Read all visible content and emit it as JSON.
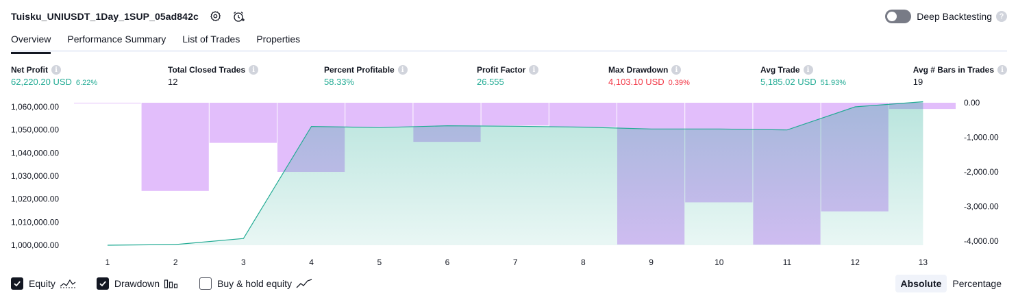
{
  "header": {
    "title": "Tuisku_UNIUSDT_1Day_1SUP_05ad842c",
    "deep_backtesting_label": "Deep Backtesting",
    "help_glyph": "?"
  },
  "tabs": [
    {
      "label": "Overview",
      "active": true
    },
    {
      "label": "Performance Summary",
      "active": false
    },
    {
      "label": "List of Trades",
      "active": false
    },
    {
      "label": "Properties",
      "active": false
    }
  ],
  "info_glyph": "i",
  "metrics": [
    {
      "label": "Net Profit",
      "value": "62,220.20 USD",
      "pct": "6.22%",
      "tone": "pos"
    },
    {
      "label": "Total Closed Trades",
      "value": "12",
      "pct": "",
      "tone": "neutral"
    },
    {
      "label": "Percent Profitable",
      "value": "58.33%",
      "pct": "",
      "tone": "pos"
    },
    {
      "label": "Profit Factor",
      "value": "26.555",
      "pct": "",
      "tone": "pos"
    },
    {
      "label": "Max Drawdown",
      "value": "4,103.10 USD",
      "pct": "0.39%",
      "tone": "neg"
    },
    {
      "label": "Avg Trade",
      "value": "5,185.02 USD",
      "pct": "51.93%",
      "tone": "pos"
    },
    {
      "label": "Avg # Bars in Trades",
      "value": "19",
      "pct": "",
      "tone": "neutral"
    }
  ],
  "chart_data": {
    "type": "line",
    "x": [
      1,
      2,
      3,
      4,
      5,
      6,
      7,
      8,
      9,
      10,
      11,
      12,
      13
    ],
    "tick_labels_x": [
      "1",
      "2",
      "3",
      "4",
      "5",
      "6",
      "7",
      "8",
      "9",
      "10",
      "11",
      "12",
      "13"
    ],
    "left_axis": {
      "ticks": [
        1000000,
        1010000,
        1020000,
        1030000,
        1040000,
        1050000,
        1060000
      ],
      "tick_labels": [
        "1,000,000.00",
        "1,010,000.00",
        "1,020,000.00",
        "1,030,000.00",
        "1,040,000.00",
        "1,050,000.00",
        "1,060,000.00"
      ],
      "range": [
        1000000,
        1060000
      ]
    },
    "right_axis": {
      "ticks": [
        0,
        -1000,
        -2000,
        -3000,
        -4000
      ],
      "tick_labels": [
        "0.00",
        "-1,000.00",
        "-2,000.00",
        "-3,000.00",
        "-4,000.00"
      ],
      "range": [
        -4000,
        0
      ]
    },
    "series": [
      {
        "name": "Equity",
        "type": "area",
        "axis": "left",
        "color": "#22ab94",
        "values": [
          1000000,
          1000300,
          1002900,
          1051500,
          1051000,
          1051800,
          1051600,
          1051200,
          1050400,
          1050400,
          1050000,
          1060000,
          1062220
        ]
      },
      {
        "name": "Drawdown",
        "type": "bar",
        "axis": "right",
        "color": "#ce93f8",
        "values": [
          0,
          -2550,
          -1160,
          -2000,
          -700,
          -1130,
          -660,
          -700,
          -4100,
          -2880,
          -4103.1,
          -3140,
          -180
        ]
      }
    ],
    "legend": "bottom-left"
  },
  "legend": {
    "items": [
      {
        "label": "Equity",
        "checked": true,
        "icon": "equity-line-icon"
      },
      {
        "label": "Drawdown",
        "checked": true,
        "icon": "drawdown-bars-icon"
      },
      {
        "label": "Buy & hold equity",
        "checked": false,
        "icon": "buy-hold-line-icon"
      }
    ]
  },
  "mode": {
    "absolute_label": "Absolute",
    "percentage_label": "Percentage",
    "active": "Absolute"
  },
  "colors": {
    "equity": "#22ab94",
    "drawdown": "#ce93f8",
    "positive": "#22ab94",
    "negative": "#f23645"
  }
}
